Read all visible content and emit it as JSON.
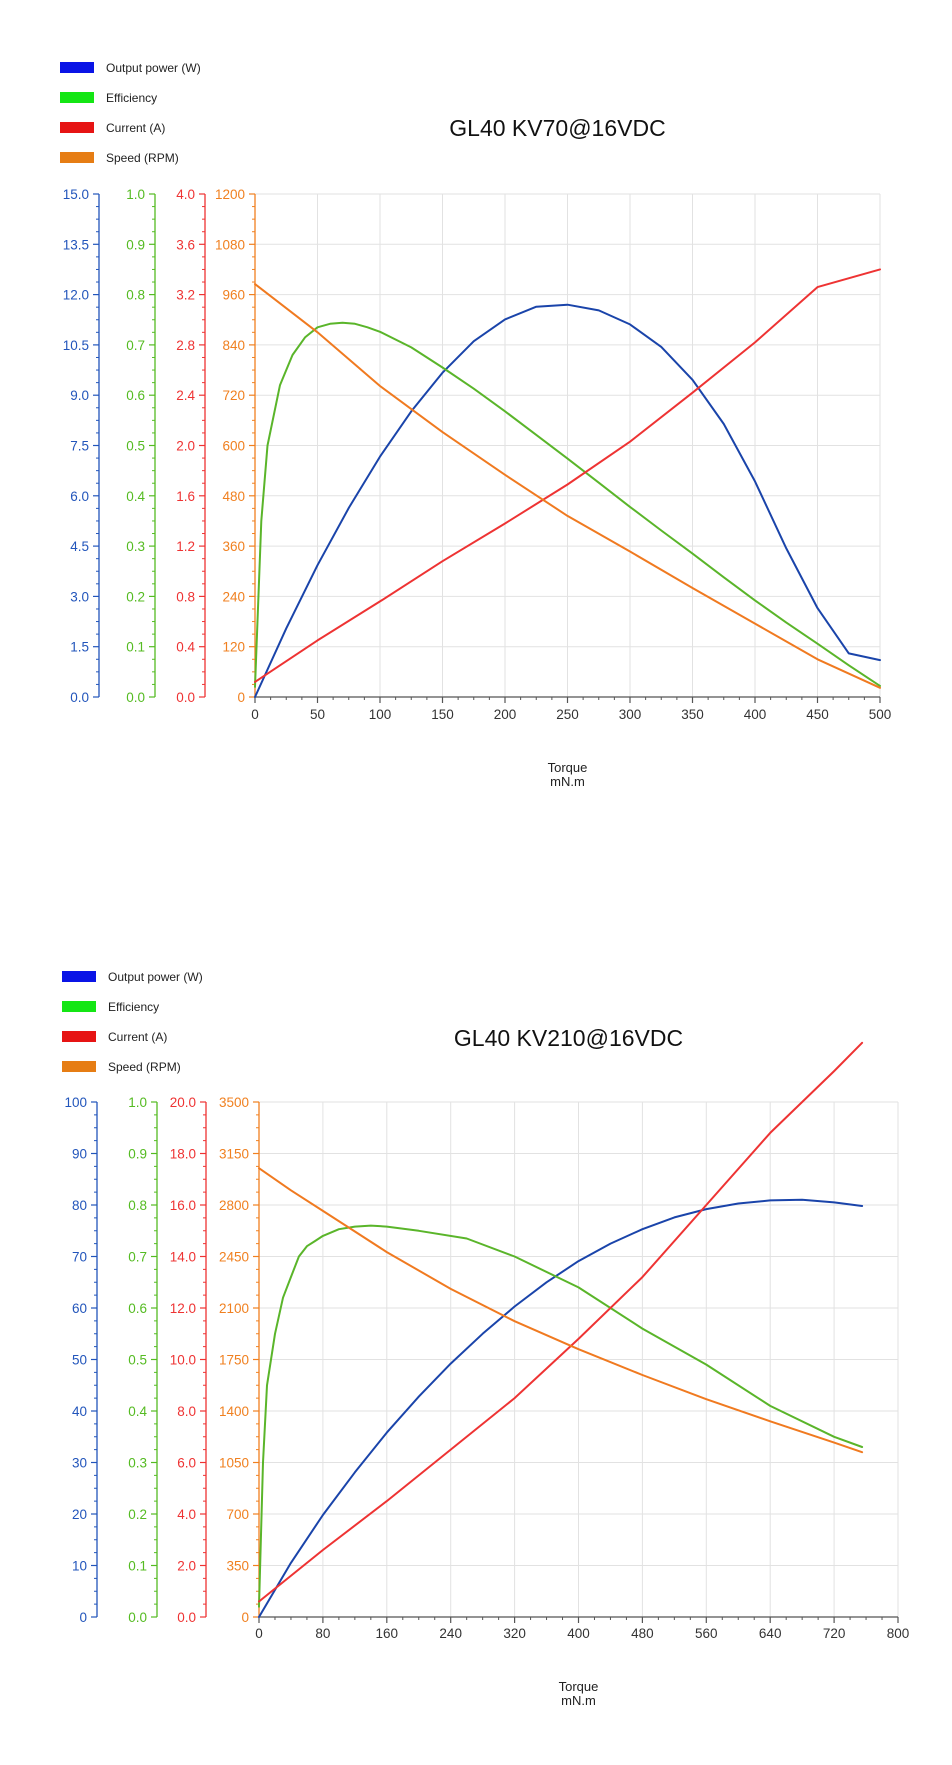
{
  "chart_data": [
    {
      "type": "line",
      "title": "GL40 KV70@16VDC",
      "xlabel": "Torque",
      "xunit": "mN.m",
      "xlim": [
        0,
        500
      ],
      "xticks": [
        "0",
        "50",
        "100",
        "150",
        "200",
        "250",
        "300",
        "350",
        "400",
        "450",
        "500"
      ],
      "legend_position": "top-left",
      "grid": true,
      "axes": [
        {
          "name": "Output power (W)",
          "color": "#2255bb",
          "ylim": [
            0,
            15
          ],
          "ticks": [
            "0.0",
            "1.5",
            "3.0",
            "4.5",
            "6.0",
            "7.5",
            "9.0",
            "10.5",
            "12.0",
            "13.5",
            "15.0"
          ]
        },
        {
          "name": "Efficiency",
          "color": "#55bb22",
          "ylim": [
            0,
            1
          ],
          "ticks": [
            "0.0",
            "0.1",
            "0.2",
            "0.3",
            "0.4",
            "0.5",
            "0.6",
            "0.7",
            "0.8",
            "0.9",
            "1.0"
          ]
        },
        {
          "name": "Current (A)",
          "color": "#ee3333",
          "ylim": [
            0,
            4
          ],
          "ticks": [
            "0.0",
            "0.4",
            "0.8",
            "1.2",
            "1.6",
            "2.0",
            "2.4",
            "2.8",
            "3.2",
            "3.6",
            "4.0"
          ]
        },
        {
          "name": "Speed (RPM)",
          "color": "#f08020",
          "ylim": [
            0,
            1200
          ],
          "ticks": [
            "0",
            "120",
            "240",
            "360",
            "480",
            "600",
            "720",
            "840",
            "960",
            "1080",
            "1200"
          ]
        }
      ],
      "series": [
        {
          "name": "Output power (W)",
          "legend_color": "#0a14e6",
          "color": "#1a44aa",
          "axis": 0,
          "x": [
            0,
            25,
            50,
            75,
            100,
            125,
            150,
            175,
            200,
            225,
            250,
            275,
            300,
            325,
            350,
            375,
            400,
            425,
            450,
            475,
            500
          ],
          "y": [
            0,
            2.05,
            3.93,
            5.64,
            7.17,
            8.52,
            9.67,
            10.61,
            11.26,
            11.64,
            11.7,
            11.53,
            11.11,
            10.44,
            9.46,
            8.14,
            6.43,
            4.43,
            2.65,
            1.3,
            1.1
          ]
        },
        {
          "name": "Efficiency",
          "legend_color": "#14e614",
          "color": "#5ab52a",
          "axis": 1,
          "x": [
            0,
            5,
            10,
            20,
            30,
            40,
            50,
            60,
            70,
            80,
            90,
            100,
            125,
            150,
            175,
            200,
            225,
            250,
            275,
            300,
            325,
            350,
            375,
            400,
            425,
            450,
            475,
            500
          ],
          "y": [
            0.02,
            0.35,
            0.5,
            0.62,
            0.68,
            0.715,
            0.735,
            0.742,
            0.744,
            0.742,
            0.735,
            0.726,
            0.695,
            0.655,
            0.613,
            0.568,
            0.521,
            0.474,
            0.426,
            0.378,
            0.331,
            0.285,
            0.238,
            0.192,
            0.148,
            0.106,
            0.063,
            0.022
          ]
        },
        {
          "name": "Current (A)",
          "legend_color": "#e61414",
          "color": "#ee3333",
          "axis": 2,
          "x": [
            0,
            50,
            100,
            150,
            200,
            250,
            300,
            350,
            400,
            450,
            500
          ],
          "y": [
            0.12,
            0.45,
            0.76,
            1.08,
            1.38,
            1.69,
            2.03,
            2.42,
            2.82,
            3.26,
            3.4
          ]
        },
        {
          "name": "Speed (RPM)",
          "legend_color": "#e67d14",
          "color": "#f07a20",
          "axis": 3,
          "x": [
            0,
            50,
            100,
            150,
            200,
            250,
            300,
            350,
            400,
            450,
            500
          ],
          "y": [
            985,
            870,
            742,
            632,
            530,
            432,
            347,
            260,
            175,
            90,
            22
          ]
        }
      ]
    },
    {
      "type": "line",
      "title": "GL40 KV210@16VDC",
      "xlabel": "Torque",
      "xunit": "mN.m",
      "xlim": [
        0,
        800
      ],
      "xticks": [
        "0",
        "80",
        "160",
        "240",
        "320",
        "400",
        "480",
        "560",
        "640",
        "720",
        "800"
      ],
      "legend_position": "top-left",
      "grid": true,
      "axes": [
        {
          "name": "Output power (W)",
          "color": "#2255bb",
          "ylim": [
            0,
            100
          ],
          "ticks": [
            "0",
            "10",
            "20",
            "30",
            "40",
            "50",
            "60",
            "70",
            "80",
            "90",
            "100"
          ]
        },
        {
          "name": "Efficiency",
          "color": "#55bb22",
          "ylim": [
            0,
            1
          ],
          "ticks": [
            "0.0",
            "0.1",
            "0.2",
            "0.3",
            "0.4",
            "0.5",
            "0.6",
            "0.7",
            "0.8",
            "0.9",
            "1.0"
          ]
        },
        {
          "name": "Current (A)",
          "color": "#ee3333",
          "ylim": [
            0,
            20
          ],
          "ticks": [
            "0.0",
            "2.0",
            "4.0",
            "6.0",
            "8.0",
            "10.0",
            "12.0",
            "14.0",
            "16.0",
            "18.0",
            "20.0"
          ]
        },
        {
          "name": "Speed (RPM)",
          "color": "#f08020",
          "ylim": [
            0,
            3500
          ],
          "ticks": [
            "0",
            "350",
            "700",
            "1050",
            "1400",
            "1750",
            "2100",
            "2450",
            "2800",
            "3150",
            "3500"
          ]
        }
      ],
      "series": [
        {
          "name": "Output power (W)",
          "legend_color": "#0a14e6",
          "color": "#1a44aa",
          "axis": 0,
          "x": [
            0,
            40,
            80,
            120,
            160,
            200,
            240,
            280,
            320,
            360,
            400,
            440,
            480,
            520,
            560,
            600,
            640,
            680,
            720,
            755
          ],
          "y": [
            0,
            10.5,
            19.8,
            28.1,
            35.8,
            42.8,
            49.2,
            55.0,
            60.3,
            65.0,
            69.1,
            72.5,
            75.3,
            77.6,
            79.2,
            80.3,
            80.9,
            81.0,
            80.5,
            79.8
          ]
        },
        {
          "name": "Efficiency",
          "legend_color": "#14e614",
          "color": "#5ab52a",
          "axis": 1,
          "x": [
            0,
            5,
            10,
            20,
            30,
            40,
            50,
            60,
            70,
            80,
            100,
            120,
            140,
            160,
            200,
            260,
            320,
            400,
            480,
            560,
            640,
            720,
            755
          ],
          "y": [
            0.02,
            0.3,
            0.45,
            0.55,
            0.62,
            0.66,
            0.7,
            0.72,
            0.73,
            0.74,
            0.753,
            0.758,
            0.76,
            0.758,
            0.75,
            0.735,
            0.7,
            0.64,
            0.56,
            0.49,
            0.41,
            0.35,
            0.33
          ]
        },
        {
          "name": "Current (A)",
          "legend_color": "#e61414",
          "color": "#ee3333",
          "axis": 2,
          "x": [
            0,
            80,
            160,
            240,
            320,
            400,
            480,
            560,
            640,
            720,
            755
          ],
          "y": [
            0.6,
            2.6,
            4.5,
            6.5,
            8.5,
            10.8,
            13.2,
            16.0,
            18.8,
            21.2,
            22.3
          ]
        },
        {
          "name": "Speed (RPM)",
          "legend_color": "#e67d14",
          "color": "#f07a20",
          "axis": 3,
          "x": [
            0,
            40,
            80,
            120,
            160,
            240,
            320,
            400,
            480,
            560,
            640,
            720,
            755
          ],
          "y": [
            3050,
            2900,
            2760,
            2620,
            2480,
            2230,
            2010,
            1820,
            1645,
            1480,
            1330,
            1185,
            1120
          ]
        }
      ]
    }
  ]
}
